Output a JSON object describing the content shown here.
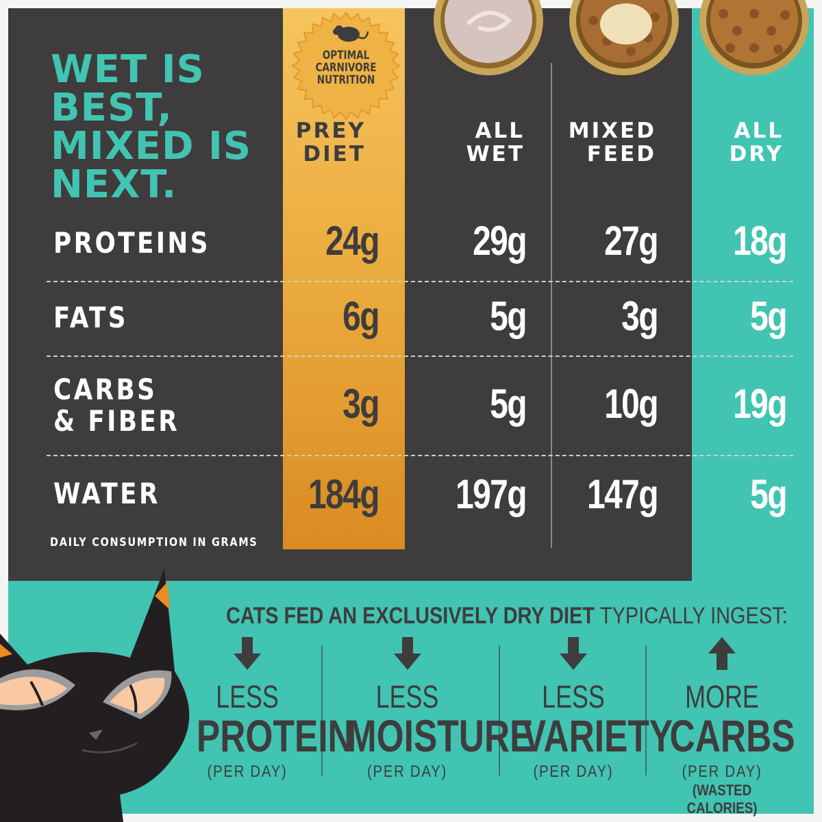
{
  "headline": [
    "WET IS",
    "BEST,",
    "MIXED IS",
    "NEXT."
  ],
  "badge": {
    "icon": "mouse-icon",
    "lines": [
      "OPTIMAL",
      "CARNIVORE",
      "NUTRITION"
    ]
  },
  "columns": [
    {
      "key": "prey",
      "lines": [
        "PREY",
        "DIET"
      ],
      "color": "#3f3c3d"
    },
    {
      "key": "wet",
      "lines": [
        "ALL",
        "WET"
      ],
      "color": "#ffffff"
    },
    {
      "key": "mixed",
      "lines": [
        "MIXED",
        "FEED"
      ],
      "color": "#ffffff"
    },
    {
      "key": "dry",
      "lines": [
        "ALL",
        "DRY"
      ],
      "color": "#ffffff"
    }
  ],
  "rows": [
    {
      "label": [
        "PROTEINS"
      ],
      "values": [
        "24g",
        "29g",
        "27g",
        "18g"
      ]
    },
    {
      "label": [
        "FATS"
      ],
      "values": [
        "6g",
        "5g",
        "3g",
        "5g"
      ]
    },
    {
      "label": [
        "CARBS",
        "& FIBER"
      ],
      "values": [
        "3g",
        "5g",
        "10g",
        "19g"
      ]
    },
    {
      "label": [
        "WATER"
      ],
      "values": [
        "184g",
        "197g",
        "147g",
        "5g"
      ]
    }
  ],
  "footnote": "DAILY CONSUMPTION IN GRAMS",
  "subtitle": {
    "bold": "CATS FED AN EXCLUSIVELY DRY DIET",
    "light": "TYPICALLY INGEST:"
  },
  "ingest": [
    {
      "arrow": "down-arrow-icon",
      "small": "LESS",
      "big": "PROTEIN",
      "per": "(PER DAY)"
    },
    {
      "arrow": "down-arrow-icon",
      "small": "LESS",
      "big": "MOISTURE",
      "per": "(PER DAY)"
    },
    {
      "arrow": "down-arrow-icon",
      "small": "LESS",
      "big": "VARIETY",
      "per": "(PER DAY)"
    },
    {
      "arrow": "up-arrow-icon",
      "small": "MORE",
      "big": "CARBS",
      "per": "(PER DAY)",
      "extra": "(WASTED CALORIES)"
    }
  ],
  "colors": {
    "dark": "#3f3c3d",
    "teal": "#41c4b2",
    "gold": "#e9a83a",
    "white": "#ffffff"
  },
  "chart_data": {
    "type": "table",
    "categories": [
      "PREY DIET",
      "ALL WET",
      "MIXED FEED",
      "ALL DRY"
    ],
    "series": [
      {
        "name": "PROTEINS",
        "values": [
          24,
          29,
          27,
          18
        ]
      },
      {
        "name": "FATS",
        "values": [
          6,
          5,
          3,
          5
        ]
      },
      {
        "name": "CARBS & FIBER",
        "values": [
          3,
          5,
          10,
          19
        ]
      },
      {
        "name": "WATER",
        "values": [
          184,
          197,
          147,
          5
        ]
      }
    ],
    "unit": "g",
    "title": "WET IS BEST, MIXED IS NEXT."
  }
}
